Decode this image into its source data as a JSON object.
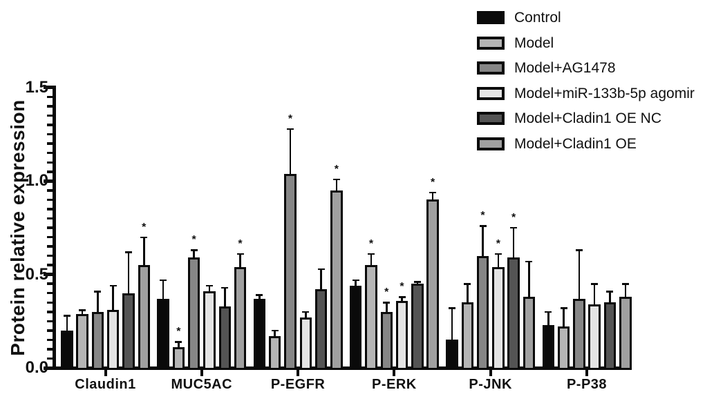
{
  "figure": {
    "background": "#ffffff",
    "axis_color": "#0a0a0a"
  },
  "chart_data": {
    "type": "bar",
    "title": "",
    "xlabel": "",
    "ylabel": "Protein relative expression",
    "ylim": [
      0,
      1.5
    ],
    "yticks": [
      0.0,
      0.5,
      1.0,
      1.5
    ],
    "ytick_labels": [
      "0.0",
      "0.5",
      "1.0",
      "1.5"
    ],
    "minor_tick_step": 0.05,
    "grid": false,
    "error_bars": "upper, with cap",
    "significance_marker": "*",
    "legend_position": "top-right",
    "categories": [
      "Claudin1",
      "MUC5AC",
      "P-EGFR",
      "P-ERK",
      "P-JNK",
      "P-P38"
    ],
    "series": [
      {
        "name": "Control",
        "color": "#0a0a0a",
        "values": [
          0.2,
          0.37,
          0.37,
          0.44,
          0.15,
          0.23
        ],
        "errors": [
          0.08,
          0.1,
          0.02,
          0.03,
          0.17,
          0.07
        ],
        "sig": [
          false,
          false,
          false,
          false,
          false,
          false
        ]
      },
      {
        "name": "Model",
        "color": "#b5b5b5",
        "values": [
          0.29,
          0.11,
          0.17,
          0.55,
          0.35,
          0.22
        ],
        "errors": [
          0.02,
          0.03,
          0.03,
          0.06,
          0.1,
          0.1
        ],
        "sig": [
          false,
          true,
          false,
          true,
          false,
          false
        ]
      },
      {
        "name": "Model+AG1478",
        "color": "#868686",
        "values": [
          0.3,
          0.59,
          1.04,
          0.3,
          0.6,
          0.37
        ],
        "errors": [
          0.11,
          0.04,
          0.24,
          0.05,
          0.16,
          0.26
        ],
        "sig": [
          false,
          true,
          true,
          true,
          true,
          false
        ]
      },
      {
        "name": "Model+miR-133b-5p agomir",
        "color": "#e4e4e4",
        "values": [
          0.31,
          0.41,
          0.27,
          0.36,
          0.54,
          0.34
        ],
        "errors": [
          0.13,
          0.03,
          0.03,
          0.02,
          0.07,
          0.11
        ],
        "sig": [
          false,
          false,
          false,
          true,
          true,
          false
        ]
      },
      {
        "name": "Model+Cladin1 OE NC",
        "color": "#545454",
        "values": [
          0.4,
          0.33,
          0.42,
          0.45,
          0.59,
          0.35
        ],
        "errors": [
          0.22,
          0.1,
          0.11,
          0.01,
          0.16,
          0.06
        ],
        "sig": [
          false,
          false,
          false,
          false,
          true,
          false
        ]
      },
      {
        "name": "Model+Cladin1 OE",
        "color": "#a0a0a0",
        "values": [
          0.55,
          0.54,
          0.95,
          0.9,
          0.38,
          0.38
        ],
        "errors": [
          0.15,
          0.07,
          0.06,
          0.04,
          0.19,
          0.07
        ],
        "sig": [
          true,
          true,
          true,
          true,
          false,
          false
        ]
      }
    ]
  }
}
